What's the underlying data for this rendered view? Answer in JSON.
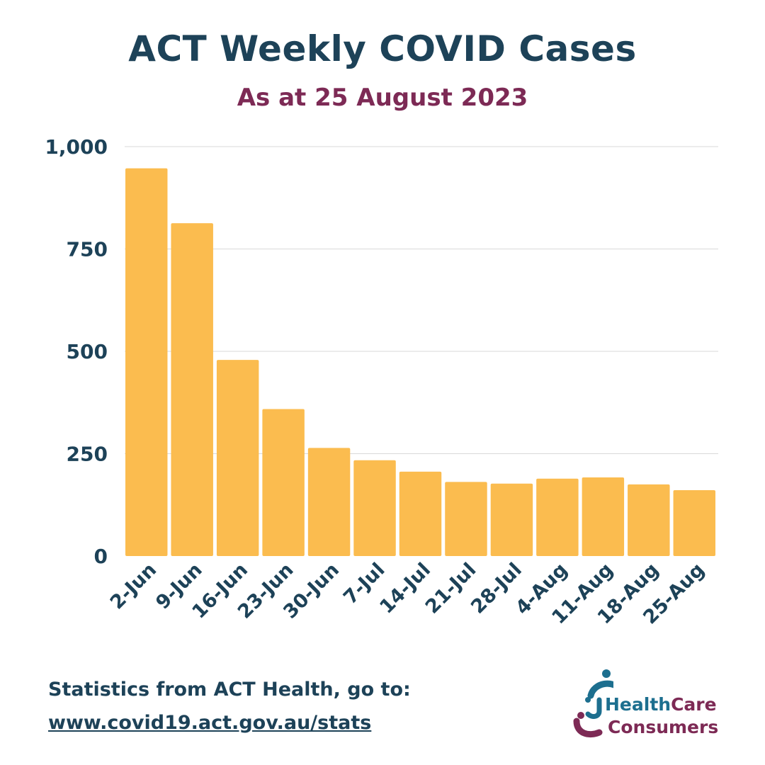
{
  "title": "ACT Weekly COVID Cases",
  "subtitle": "As at 25 August 2023",
  "colors": {
    "title": "#1d4258",
    "subtitle": "#7d2a55",
    "bar": "#fbbc4f",
    "grid": "#d9d9d9",
    "logo_teal": "#1d6f8f",
    "logo_maroon": "#7d2a55"
  },
  "chart_data": {
    "type": "bar",
    "categories": [
      "2-Jun",
      "9-Jun",
      "16-Jun",
      "23-Jun",
      "30-Jun",
      "7-Jul",
      "14-Jul",
      "21-Jul",
      "28-Jul",
      "4-Aug",
      "11-Aug",
      "18-Aug",
      "25-Aug"
    ],
    "values": [
      947,
      813,
      479,
      359,
      264,
      234,
      206,
      181,
      177,
      189,
      192,
      175,
      161
    ],
    "ylim": [
      0,
      1000
    ],
    "yticks": [
      0,
      250,
      500,
      750,
      1000
    ],
    "ytick_labels": [
      "0",
      "250",
      "500",
      "750",
      "1,000"
    ],
    "grid": true,
    "legend": "none"
  },
  "source": {
    "text": "Statistics from ACT Health, go to:",
    "url": "www.covid19.act.gov.au/stats"
  },
  "logo": {
    "word_health": "Health",
    "word_care": "Care",
    "word_consumers": "Consumers"
  }
}
